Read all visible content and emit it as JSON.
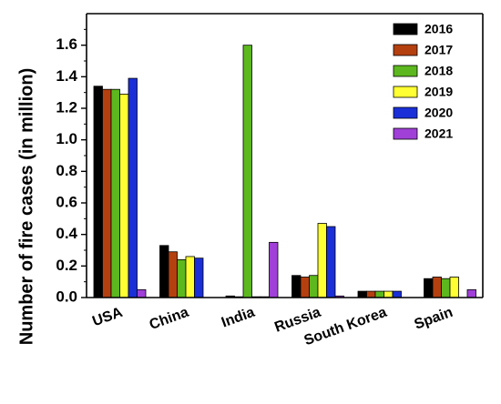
{
  "chart_data": {
    "type": "bar",
    "title": "",
    "xlabel": "",
    "ylabel": "Number of fire cases (in million)",
    "ylim": [
      0,
      1.8
    ],
    "yticks": [
      "0.0",
      "0.2",
      "0.4",
      "0.6",
      "0.8",
      "1.0",
      "1.2",
      "1.4",
      "1.6"
    ],
    "categories": [
      "USA",
      "China",
      "India",
      "Russia",
      "South Korea",
      "Spain"
    ],
    "series": [
      {
        "name": "2016",
        "color": "#000000",
        "values": [
          1.34,
          0.33,
          0.01,
          0.14,
          0.04,
          0.12
        ]
      },
      {
        "name": "2017",
        "color": "#b5400f",
        "values": [
          1.32,
          0.29,
          0.005,
          0.13,
          0.04,
          0.13
        ]
      },
      {
        "name": "2018",
        "color": "#5cb81e",
        "values": [
          1.32,
          0.24,
          1.6,
          0.14,
          0.04,
          0.12
        ]
      },
      {
        "name": "2019",
        "color": "#ffff33",
        "values": [
          1.29,
          0.26,
          0.005,
          0.47,
          0.04,
          0.13
        ]
      },
      {
        "name": "2020",
        "color": "#1a2fd8",
        "values": [
          1.39,
          0.25,
          0.005,
          0.45,
          0.04,
          0
        ]
      },
      {
        "name": "2021",
        "color": "#a040d8",
        "values": [
          0.05,
          0,
          0.35,
          0.01,
          0,
          0.05
        ]
      }
    ],
    "grid": false,
    "legend_position": "top-right"
  }
}
